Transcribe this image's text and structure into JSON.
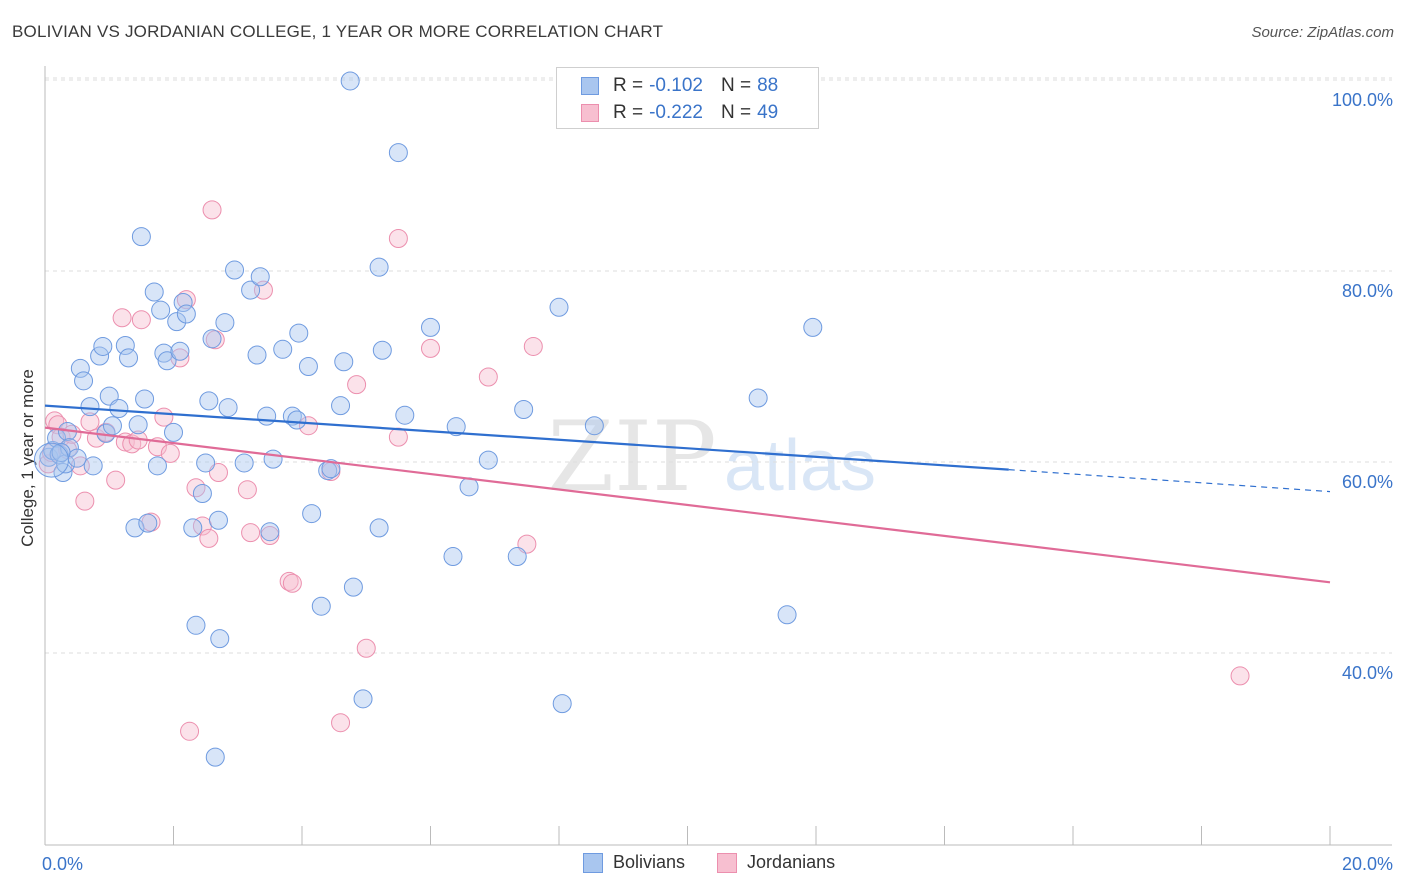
{
  "title": "BOLIVIAN VS JORDANIAN COLLEGE, 1 YEAR OR MORE CORRELATION CHART",
  "source": "Source: ZipAtlas.com",
  "watermark": {
    "zip": "ZIP",
    "atlas": "atlas"
  },
  "legend_box": {
    "rows": [
      {
        "r_label": "R =",
        "r_value": "-0.102",
        "n_label": "N =",
        "n_value": "88"
      },
      {
        "r_label": "R =",
        "r_value": "-0.222",
        "n_label": "N =",
        "n_value": "49"
      }
    ]
  },
  "colors": {
    "bolivians_fill": "#a9c6ef",
    "bolivians_stroke": "#6f9be0",
    "bolivians_line": "#2f6fcf",
    "jordanians_fill": "#f7bfd0",
    "jordanians_stroke": "#ec8fae",
    "jordanians_line": "#e06b97",
    "tick_label": "#3a74c9",
    "grid": "#dddddd"
  },
  "chart_data": {
    "type": "scatter",
    "title": "BOLIVIAN VS JORDANIAN COLLEGE, 1 YEAR OR MORE CORRELATION CHART",
    "xlabel": "",
    "ylabel": "College, 1 year or more",
    "xlim": [
      0,
      20
    ],
    "ylim": [
      20,
      102
    ],
    "x_tick_labels": [
      "0.0%",
      "20.0%"
    ],
    "y_ticks": [
      40,
      60,
      80,
      100
    ],
    "y_tick_labels": [
      "40.0%",
      "60.0%",
      "80.0%",
      "100.0%"
    ],
    "grid": true,
    "legend_position": "bottom",
    "series": [
      {
        "name": "Bolivians",
        "r": -0.102,
        "n": 88,
        "trend": {
          "x": [
            0,
            15
          ],
          "y": [
            65.9,
            59.2
          ],
          "dashed_to": [
            20,
            56.9
          ]
        },
        "points": [
          [
            0.06,
            60.5
          ],
          [
            0.12,
            61.2
          ],
          [
            0.18,
            62.5
          ],
          [
            0.22,
            60.8
          ],
          [
            0.28,
            58.9
          ],
          [
            0.32,
            59.8
          ],
          [
            0.35,
            63.2
          ],
          [
            0.38,
            61.5
          ],
          [
            0.5,
            60.4
          ],
          [
            0.55,
            69.8
          ],
          [
            0.6,
            68.5
          ],
          [
            0.7,
            65.8
          ],
          [
            0.75,
            59.6
          ],
          [
            0.85,
            71.1
          ],
          [
            0.9,
            72.1
          ],
          [
            0.95,
            63.0
          ],
          [
            1.0,
            66.9
          ],
          [
            1.05,
            63.8
          ],
          [
            1.15,
            65.6
          ],
          [
            1.25,
            72.2
          ],
          [
            1.3,
            70.9
          ],
          [
            1.4,
            53.1
          ],
          [
            1.45,
            63.9
          ],
          [
            1.5,
            83.6
          ],
          [
            1.55,
            66.6
          ],
          [
            1.6,
            53.6
          ],
          [
            1.7,
            77.8
          ],
          [
            1.75,
            59.6
          ],
          [
            1.8,
            75.9
          ],
          [
            1.85,
            71.4
          ],
          [
            1.9,
            70.6
          ],
          [
            2.0,
            63.1
          ],
          [
            2.05,
            74.7
          ],
          [
            2.1,
            71.6
          ],
          [
            2.15,
            76.7
          ],
          [
            2.2,
            75.5
          ],
          [
            2.3,
            53.1
          ],
          [
            2.35,
            42.9
          ],
          [
            2.45,
            56.7
          ],
          [
            2.5,
            59.9
          ],
          [
            2.55,
            66.4
          ],
          [
            2.6,
            72.9
          ],
          [
            2.65,
            29.1
          ],
          [
            2.7,
            53.9
          ],
          [
            2.72,
            41.5
          ],
          [
            2.8,
            74.6
          ],
          [
            2.85,
            65.7
          ],
          [
            2.95,
            80.1
          ],
          [
            3.1,
            59.9
          ],
          [
            3.2,
            78.0
          ],
          [
            3.3,
            71.2
          ],
          [
            3.35,
            79.4
          ],
          [
            3.45,
            64.8
          ],
          [
            3.5,
            52.7
          ],
          [
            3.55,
            60.3
          ],
          [
            3.7,
            71.8
          ],
          [
            3.85,
            64.8
          ],
          [
            3.92,
            64.4
          ],
          [
            3.95,
            73.5
          ],
          [
            4.1,
            70.0
          ],
          [
            4.15,
            54.6
          ],
          [
            4.3,
            44.9
          ],
          [
            4.4,
            59.1
          ],
          [
            4.45,
            59.3
          ],
          [
            4.6,
            65.9
          ],
          [
            4.65,
            70.5
          ],
          [
            4.75,
            99.9
          ],
          [
            4.8,
            46.9
          ],
          [
            4.95,
            35.2
          ],
          [
            5.2,
            53.1
          ],
          [
            5.2,
            80.4
          ],
          [
            5.25,
            71.7
          ],
          [
            5.5,
            92.4
          ],
          [
            5.6,
            64.9
          ],
          [
            6.0,
            74.1
          ],
          [
            6.35,
            50.1
          ],
          [
            6.4,
            63.7
          ],
          [
            6.6,
            57.4
          ],
          [
            6.9,
            60.2
          ],
          [
            7.35,
            50.1
          ],
          [
            7.45,
            65.5
          ],
          [
            8.0,
            76.2
          ],
          [
            8.05,
            34.7
          ],
          [
            8.55,
            63.8
          ],
          [
            11.1,
            66.7
          ],
          [
            11.55,
            44.0
          ],
          [
            11.95,
            74.1
          ],
          [
            0.25,
            61.0
          ]
        ]
      },
      {
        "name": "Jordanians",
        "r": -0.222,
        "n": 49,
        "trend": {
          "x": [
            0,
            20
          ],
          "y": [
            63.6,
            47.4
          ]
        },
        "points": [
          [
            0.05,
            59.8
          ],
          [
            0.1,
            61.0
          ],
          [
            0.15,
            64.3
          ],
          [
            0.2,
            63.9
          ],
          [
            0.25,
            62.6
          ],
          [
            0.35,
            61.3
          ],
          [
            0.42,
            62.9
          ],
          [
            0.55,
            59.6
          ],
          [
            0.62,
            55.9
          ],
          [
            0.7,
            64.2
          ],
          [
            0.8,
            62.5
          ],
          [
            0.95,
            63.1
          ],
          [
            1.1,
            58.1
          ],
          [
            1.2,
            75.1
          ],
          [
            1.25,
            62.1
          ],
          [
            1.35,
            61.9
          ],
          [
            1.45,
            62.3
          ],
          [
            1.5,
            74.9
          ],
          [
            1.65,
            53.7
          ],
          [
            1.75,
            61.6
          ],
          [
            1.85,
            64.7
          ],
          [
            1.95,
            60.9
          ],
          [
            2.1,
            70.9
          ],
          [
            2.2,
            77.0
          ],
          [
            2.25,
            31.8
          ],
          [
            2.35,
            57.3
          ],
          [
            2.45,
            53.3
          ],
          [
            2.55,
            52.0
          ],
          [
            2.6,
            86.4
          ],
          [
            2.65,
            72.8
          ],
          [
            2.7,
            58.9
          ],
          [
            3.15,
            57.1
          ],
          [
            3.2,
            52.6
          ],
          [
            3.4,
            78.0
          ],
          [
            3.5,
            52.3
          ],
          [
            3.8,
            47.5
          ],
          [
            3.85,
            47.3
          ],
          [
            4.1,
            63.8
          ],
          [
            4.45,
            59.0
          ],
          [
            4.6,
            32.7
          ],
          [
            4.85,
            68.1
          ],
          [
            5.0,
            40.5
          ],
          [
            5.5,
            62.6
          ],
          [
            5.5,
            83.4
          ],
          [
            6.0,
            71.9
          ],
          [
            6.9,
            68.9
          ],
          [
            7.5,
            51.4
          ],
          [
            7.6,
            72.1
          ],
          [
            18.6,
            37.6
          ]
        ]
      }
    ]
  }
}
